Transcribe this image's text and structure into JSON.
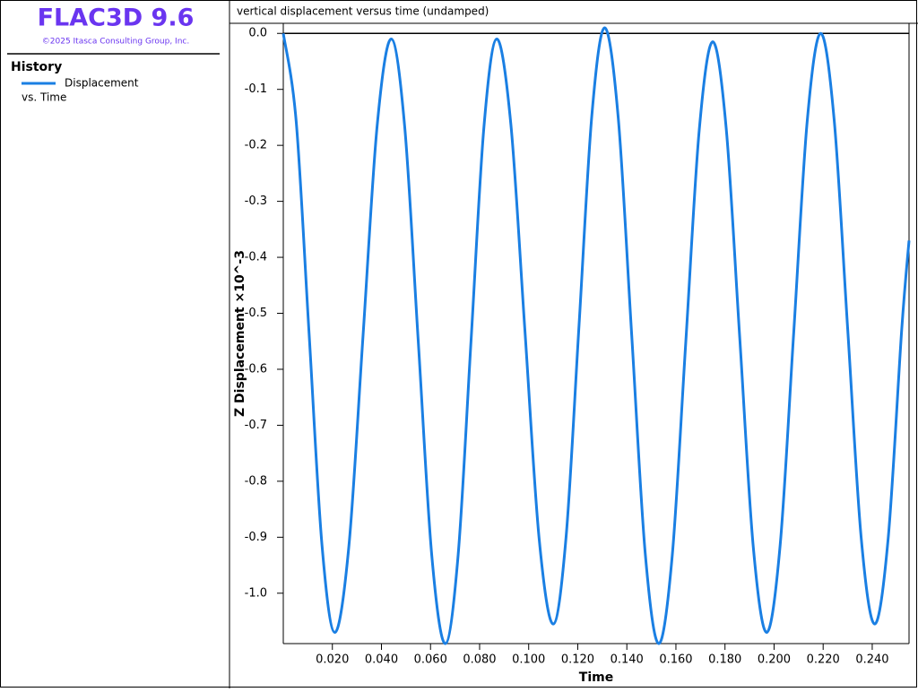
{
  "header": {
    "app": "FLAC3D 9.6",
    "copyright": "©2025 Itasca Consulting Group, Inc."
  },
  "legend": {
    "title": "History",
    "subtitle": "vs. Time"
  },
  "chart_data": {
    "type": "line",
    "title": "vertical displacement versus time (undamped)",
    "x_label": "Time",
    "y_label": "Z Displacement ×10^-3",
    "x": [
      0,
      0.00525,
      0.0105,
      0.01575,
      0.021,
      0.02675,
      0.0325,
      0.03825,
      0.044,
      0.0495,
      0.055,
      0.0605,
      0.066,
      0.07125,
      0.0765,
      0.08175,
      0.087,
      0.09275,
      0.0985,
      0.10425,
      0.11,
      0.11525,
      0.1205,
      0.12575,
      0.131,
      0.1365,
      0.142,
      0.1475,
      0.153,
      0.1585,
      0.164,
      0.1695,
      0.175,
      0.1805,
      0.186,
      0.1915,
      0.197,
      0.2025,
      0.208,
      0.2135,
      0.219,
      0.2245,
      0.23,
      0.2355,
      0.241,
      0.2465,
      0.252,
      0.255
    ],
    "series": [
      {
        "name": "Displacement",
        "color": "#1a7fe3",
        "values": [
          0,
          -0.157,
          -0.535,
          -0.913,
          -1.07,
          -0.915,
          -0.54,
          -0.165,
          -0.01,
          -0.168,
          -0.55,
          -0.932,
          -1.09,
          -0.932,
          -0.55,
          -0.168,
          -0.01,
          -0.163,
          -0.533,
          -0.902,
          -1.055,
          -0.899,
          -0.523,
          -0.146,
          0.01,
          -0.151,
          -0.54,
          -0.929,
          -1.09,
          -0.933,
          -0.553,
          -0.173,
          -0.015,
          -0.17,
          -0.543,
          -0.916,
          -1.07,
          -0.913,
          -0.535,
          -0.157,
          0,
          -0.155,
          -0.528,
          -0.901,
          -1.055,
          -0.902,
          -0.53,
          -0.37
        ]
      }
    ],
    "xlim": [
      0,
      0.255
    ],
    "ylim": [
      -1.09,
      0.018
    ],
    "xticks": [
      {
        "value": 0.02,
        "label": "0.020"
      },
      {
        "value": 0.04,
        "label": "0.040"
      },
      {
        "value": 0.06,
        "label": "0.060"
      },
      {
        "value": 0.08,
        "label": "0.080"
      },
      {
        "value": 0.1,
        "label": "0.100"
      },
      {
        "value": 0.12,
        "label": "0.120"
      },
      {
        "value": 0.14,
        "label": "0.140"
      },
      {
        "value": 0.16,
        "label": "0.160"
      },
      {
        "value": 0.18,
        "label": "0.180"
      },
      {
        "value": 0.2,
        "label": "0.200"
      },
      {
        "value": 0.22,
        "label": "0.220"
      },
      {
        "value": 0.24,
        "label": "0.240"
      }
    ],
    "yticks": [
      {
        "value": 0,
        "label": "0.0"
      },
      -0.1,
      -0.2,
      -0.3,
      -0.4,
      -0.5,
      -0.6,
      -0.7,
      -0.8,
      -0.9,
      {
        "value": -1,
        "label": "-1.0"
      }
    ],
    "zero_line": true
  }
}
